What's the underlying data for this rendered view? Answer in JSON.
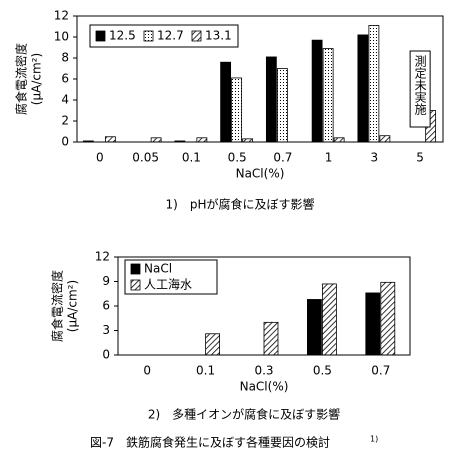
{
  "figure": {
    "title": "図-7　鉄筋腐食発生に及ぼす各種要因の検討",
    "title_ref": "1)"
  },
  "chart_data": [
    {
      "type": "bar",
      "caption": "1)　pHが腐食に及ぼす影響",
      "y_label": "腐食電流密度",
      "y_unit": "(μA/cm²)",
      "x_label": "NaCl(%)",
      "categories": [
        "0",
        "0.05",
        "0.1",
        "0.5",
        "0.7",
        "1",
        "3",
        "5"
      ],
      "series": [
        {
          "name": "12.5",
          "color": "#000000",
          "pattern": "solid",
          "values": [
            0.1,
            null,
            0.1,
            7.6,
            8.1,
            9.7,
            10.2,
            null
          ]
        },
        {
          "name": "12.7",
          "color": "#000000",
          "pattern": "dots",
          "values": [
            0,
            null,
            0,
            6.1,
            7.0,
            8.9,
            11.1,
            null
          ]
        },
        {
          "name": "13.1",
          "color": "#000000",
          "pattern": "hatch",
          "values": [
            0.5,
            0.4,
            0.4,
            0.3,
            null,
            0.4,
            0.6,
            3.0
          ]
        }
      ],
      "annotation": "測定未実施",
      "ylim": [
        0,
        12
      ],
      "yticks": [
        0,
        2,
        4,
        6,
        8,
        10,
        12
      ],
      "legend": "top-left"
    },
    {
      "type": "bar",
      "caption": "2)　多種イオンが腐食に及ぼす影響",
      "y_label": "腐食電流密度",
      "y_unit": "(μA/cm²)",
      "x_label": "NaCl(%)",
      "categories": [
        "0",
        "0.1",
        "0.3",
        "0.5",
        "0.7"
      ],
      "series": [
        {
          "name": "NaCl",
          "color": "#000000",
          "pattern": "solid",
          "values": [
            0,
            0,
            0,
            6.8,
            7.6
          ]
        },
        {
          "name": "人工海水",
          "color": "#000000",
          "pattern": "hatch",
          "values": [
            0,
            2.6,
            4.0,
            8.7,
            8.9
          ]
        }
      ],
      "ylim": [
        0,
        12
      ],
      "yticks": [
        0,
        3,
        6,
        9,
        12
      ],
      "legend": "top-left"
    }
  ]
}
